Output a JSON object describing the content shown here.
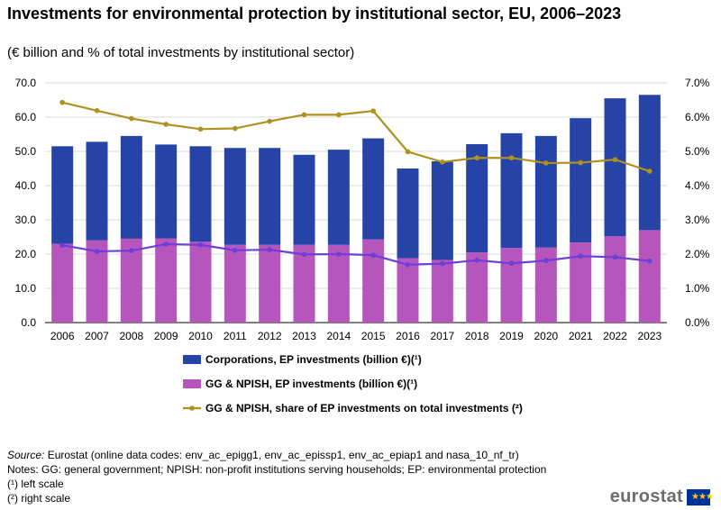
{
  "header": {
    "title": "Investments for environmental protection by institutional sector, EU, 2006–2023",
    "subtitle": "(€ billion and % of total investments by institutional sector)"
  },
  "footer": {
    "source_label": "Source:",
    "source_text": " Eurostat (online data codes: env_ac_epigg1, env_ac_epissp1, env_ac_epiap1 and nasa_10_nf_tr)",
    "notes": "Notes: GG: general government;  NPISH: non-profit institutions serving households; EP: environmental  protection",
    "left_scale": "(¹) left scale",
    "right_scale": "(²) right scale",
    "logo": "eurostat"
  },
  "chart_data": {
    "type": "bar",
    "stacked": true,
    "categories": [
      "2006",
      "2007",
      "2008",
      "2009",
      "2010",
      "2011",
      "2012",
      "2013",
      "2014",
      "2015",
      "2016",
      "2017",
      "2018",
      "2019",
      "2020",
      "2021",
      "2022",
      "2023"
    ],
    "series": [
      {
        "name": "GG & NPISH, EP investments (billion €)(¹)",
        "color": "#b656bd",
        "axis": "left",
        "kind": "bar",
        "values": [
          23.0,
          24.0,
          24.5,
          24.6,
          23.6,
          22.7,
          22.7,
          22.7,
          22.7,
          24.3,
          18.8,
          18.3,
          20.5,
          21.8,
          21.9,
          23.4,
          25.2,
          27.0
        ]
      },
      {
        "name": "Corporations, EP investments (billion €)(¹)",
        "color": "#2644a7",
        "axis": "left",
        "kind": "bar",
        "values": [
          28.5,
          28.8,
          30.0,
          27.4,
          27.9,
          28.3,
          28.3,
          26.3,
          27.8,
          29.5,
          26.2,
          28.8,
          31.6,
          33.5,
          32.6,
          36.3,
          40.3,
          39.5
        ]
      },
      {
        "name": "GG & NPISH, share of EP investments on total investments (²)",
        "color": "#b09120",
        "axis": "right",
        "kind": "line",
        "values": [
          6.43,
          6.19,
          5.96,
          5.79,
          5.65,
          5.67,
          5.88,
          6.07,
          6.07,
          6.18,
          4.99,
          4.69,
          4.81,
          4.81,
          4.66,
          4.67,
          4.76,
          4.42
        ]
      },
      {
        "name": "",
        "color": "#6c3fd9",
        "axis": "right",
        "kind": "line",
        "values": [
          2.26,
          2.08,
          2.1,
          2.29,
          2.27,
          2.11,
          2.13,
          1.99,
          2.0,
          1.97,
          1.69,
          1.72,
          1.82,
          1.73,
          1.81,
          1.94,
          1.91,
          1.8
        ]
      }
    ],
    "left_axis": {
      "min": 0,
      "max": 70,
      "step": 10,
      "tick_labels": [
        "0.0",
        "10.0",
        "20.0",
        "30.0",
        "40.0",
        "50.0",
        "60.0",
        "70.0"
      ]
    },
    "right_axis": {
      "min": 0,
      "max": 7,
      "step": 1,
      "tick_labels": [
        "0.0%",
        "1.0%",
        "2.0%",
        "3.0%",
        "4.0%",
        "5.0%",
        "6.0%",
        "7.0%"
      ]
    },
    "legend": [
      {
        "label": "Corporations, EP investments (billion €)(¹)",
        "color": "#2644a7",
        "kind": "bar"
      },
      {
        "label": "GG & NPISH, EP investments (billion €)(¹)",
        "color": "#b656bd",
        "kind": "bar"
      },
      {
        "label": "GG & NPISH, share of EP investments on total investments (²)",
        "color": "#b09120",
        "kind": "line"
      }
    ],
    "grid": true,
    "legend_position": "bottom"
  }
}
